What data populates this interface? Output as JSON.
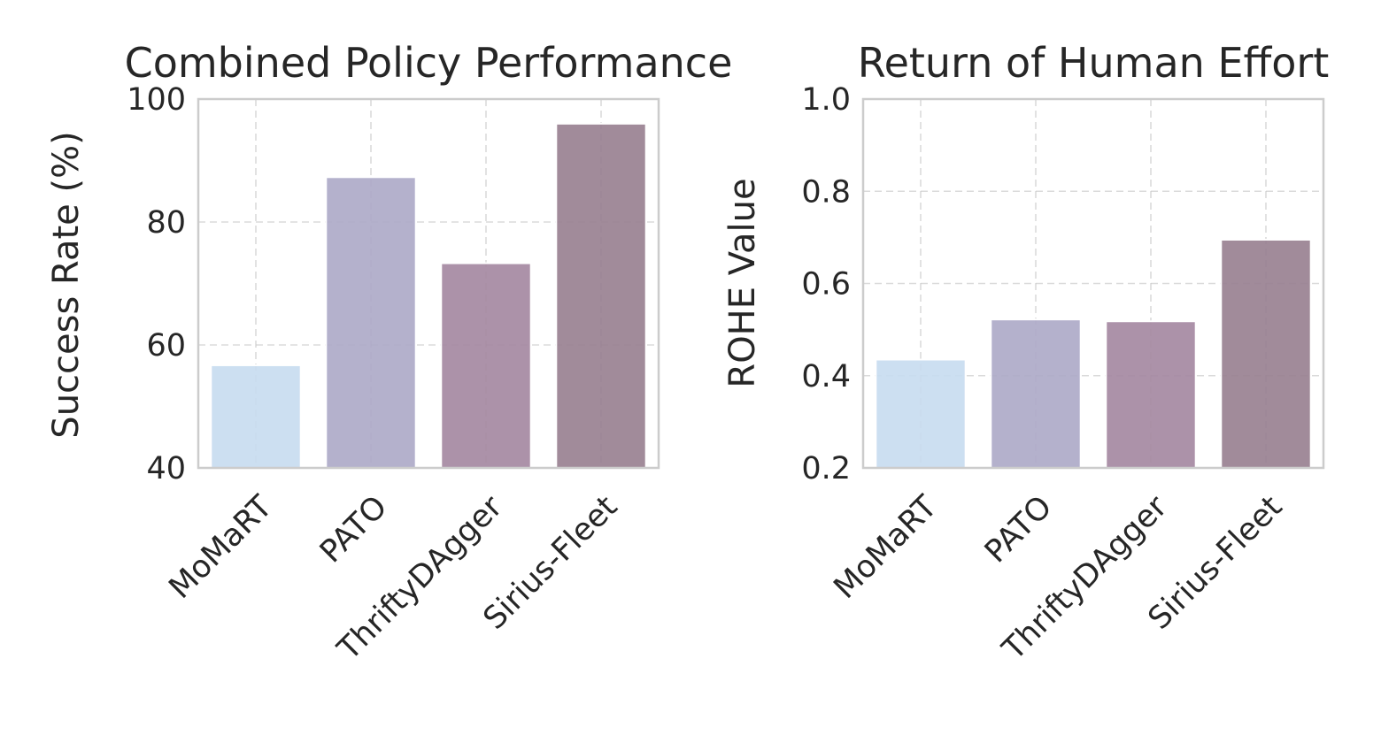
{
  "chart_data": [
    {
      "type": "bar",
      "title": "Combined Policy Performance",
      "xlabel": "",
      "ylabel": "Success Rate (%)",
      "categories": [
        "MoMaRT",
        "PATO",
        "ThriftyDAgger",
        "Sirius-Fleet"
      ],
      "values": [
        56.7,
        87.3,
        73.3,
        96.0
      ],
      "ylim": [
        40,
        100
      ],
      "yticks": [
        "40",
        "60",
        "80",
        "100"
      ],
      "grid": true,
      "colors": [
        "#c6dbef",
        "#aca9c6",
        "#a386a0",
        "#977e8f"
      ]
    },
    {
      "type": "bar",
      "title": "Return of Human Effort",
      "xlabel": "",
      "ylabel": "ROHE Value",
      "categories": [
        "MoMaRT",
        "PATO",
        "ThriftyDAgger",
        "Sirius-Fleet"
      ],
      "values": [
        0.435,
        0.522,
        0.518,
        0.695
      ],
      "ylim": [
        0.2,
        1.0
      ],
      "yticks": [
        "0.2",
        "0.4",
        "0.6",
        "0.8",
        "1.0"
      ],
      "grid": true,
      "colors": [
        "#c6dbef",
        "#aca9c6",
        "#a386a0",
        "#977e8f"
      ]
    }
  ]
}
